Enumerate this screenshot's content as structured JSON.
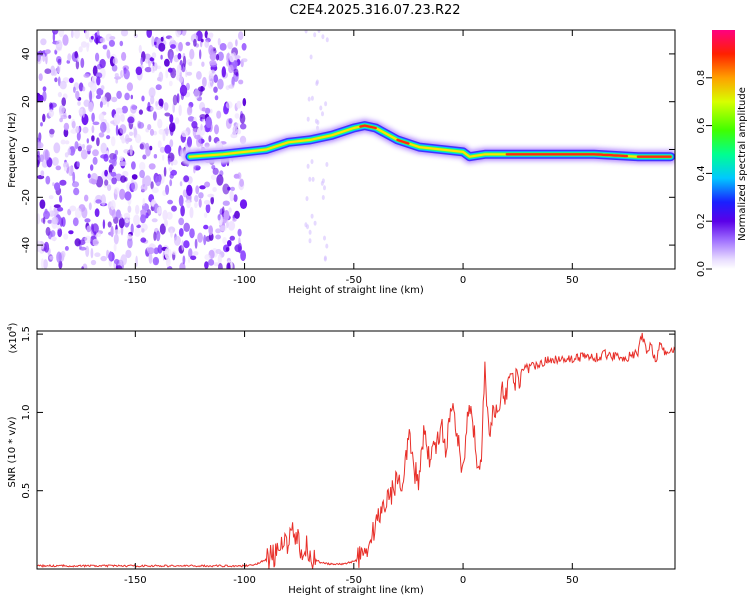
{
  "title": "C2E4.2025.316.07.23.R22",
  "chart_data": [
    {
      "type": "heatmap",
      "name": "spectrogram",
      "xlabel": "Height of straight line (km)",
      "ylabel": "Frequency (Hz)",
      "xlim": [
        -195,
        97
      ],
      "ylim": [
        -50,
        50
      ],
      "xticks": [
        -150,
        -100,
        -50,
        0,
        50
      ],
      "xtick_labels": [
        "-150",
        "-100",
        "-50",
        "0",
        "50"
      ],
      "yticks": [
        -40,
        -20,
        0,
        20,
        40
      ],
      "ytick_labels": [
        "-40",
        "-20",
        "0",
        "20",
        "40"
      ],
      "noise_region_x": [
        -195,
        -100
      ],
      "ridge": {
        "x": [
          -125,
          -110,
          -100,
          -90,
          -80,
          -70,
          -60,
          -50,
          -45,
          -40,
          -30,
          -20,
          -10,
          0,
          3,
          10,
          30,
          60,
          80,
          95
        ],
        "y": [
          -3,
          -2,
          -1,
          0,
          3,
          4,
          6,
          9,
          10,
          9,
          4,
          1,
          0,
          -1,
          -3,
          -2,
          -2,
          -2,
          -3,
          -3
        ]
      },
      "colorbar": {
        "label": "Normalized spectral amplitude",
        "ticks": [
          0.0,
          0.2,
          0.4,
          0.6,
          0.8
        ],
        "tick_labels": [
          "0.0",
          "0.2",
          "0.4",
          "0.6",
          "0.8"
        ],
        "range": [
          0,
          1
        ]
      }
    },
    {
      "type": "line",
      "name": "snr",
      "xlabel": "Height of straight line (km)",
      "ylabel": "SNR (10 * v/v)",
      "multiplier_label": "(x10",
      "multiplier_exp": "4",
      "multiplier_close": ")",
      "xlim": [
        -195,
        97
      ],
      "ylim": [
        0.0,
        1.52
      ],
      "xticks": [
        -150,
        -100,
        -50,
        0,
        50
      ],
      "xtick_labels": [
        "-150",
        "-100",
        "-50",
        "0",
        "50"
      ],
      "yticks": [
        0.5,
        1.0,
        1.5
      ],
      "ytick_labels": [
        "0.5",
        "1.0",
        "1.5"
      ],
      "color": "#e8302a",
      "series": [
        {
          "name": "SNR",
          "x": [
            -195,
            -180,
            -160,
            -140,
            -120,
            -100,
            -95,
            -90,
            -85,
            -80,
            -78,
            -76,
            -74,
            -72,
            -70,
            -65,
            -60,
            -55,
            -50,
            -45,
            -42,
            -40,
            -38,
            -35,
            -32,
            -30,
            -28,
            -25,
            -22,
            -20,
            -18,
            -15,
            -12,
            -10,
            -8,
            -5,
            -2,
            0,
            2,
            4,
            6,
            8,
            10,
            12,
            14,
            16,
            18,
            20,
            22,
            25,
            28,
            30,
            35,
            40,
            45,
            50,
            55,
            60,
            65,
            70,
            75,
            80,
            82,
            84,
            86,
            88,
            90,
            93,
            97
          ],
          "y": [
            0.02,
            0.02,
            0.02,
            0.02,
            0.02,
            0.02,
            0.03,
            0.06,
            0.1,
            0.18,
            0.28,
            0.2,
            0.1,
            0.16,
            0.08,
            0.04,
            0.03,
            0.03,
            0.05,
            0.12,
            0.18,
            0.3,
            0.35,
            0.45,
            0.5,
            0.6,
            0.55,
            0.85,
            0.62,
            0.55,
            0.9,
            0.7,
            0.8,
            0.95,
            0.72,
            1.05,
            0.78,
            0.6,
            0.95,
            1.0,
            0.75,
            0.62,
            1.3,
            0.85,
            1.0,
            1.05,
            1.15,
            1.1,
            1.25,
            1.2,
            1.3,
            1.28,
            1.32,
            1.33,
            1.35,
            1.34,
            1.36,
            1.35,
            1.37,
            1.36,
            1.35,
            1.38,
            1.5,
            1.38,
            1.45,
            1.32,
            1.42,
            1.38,
            1.4
          ]
        }
      ]
    }
  ]
}
